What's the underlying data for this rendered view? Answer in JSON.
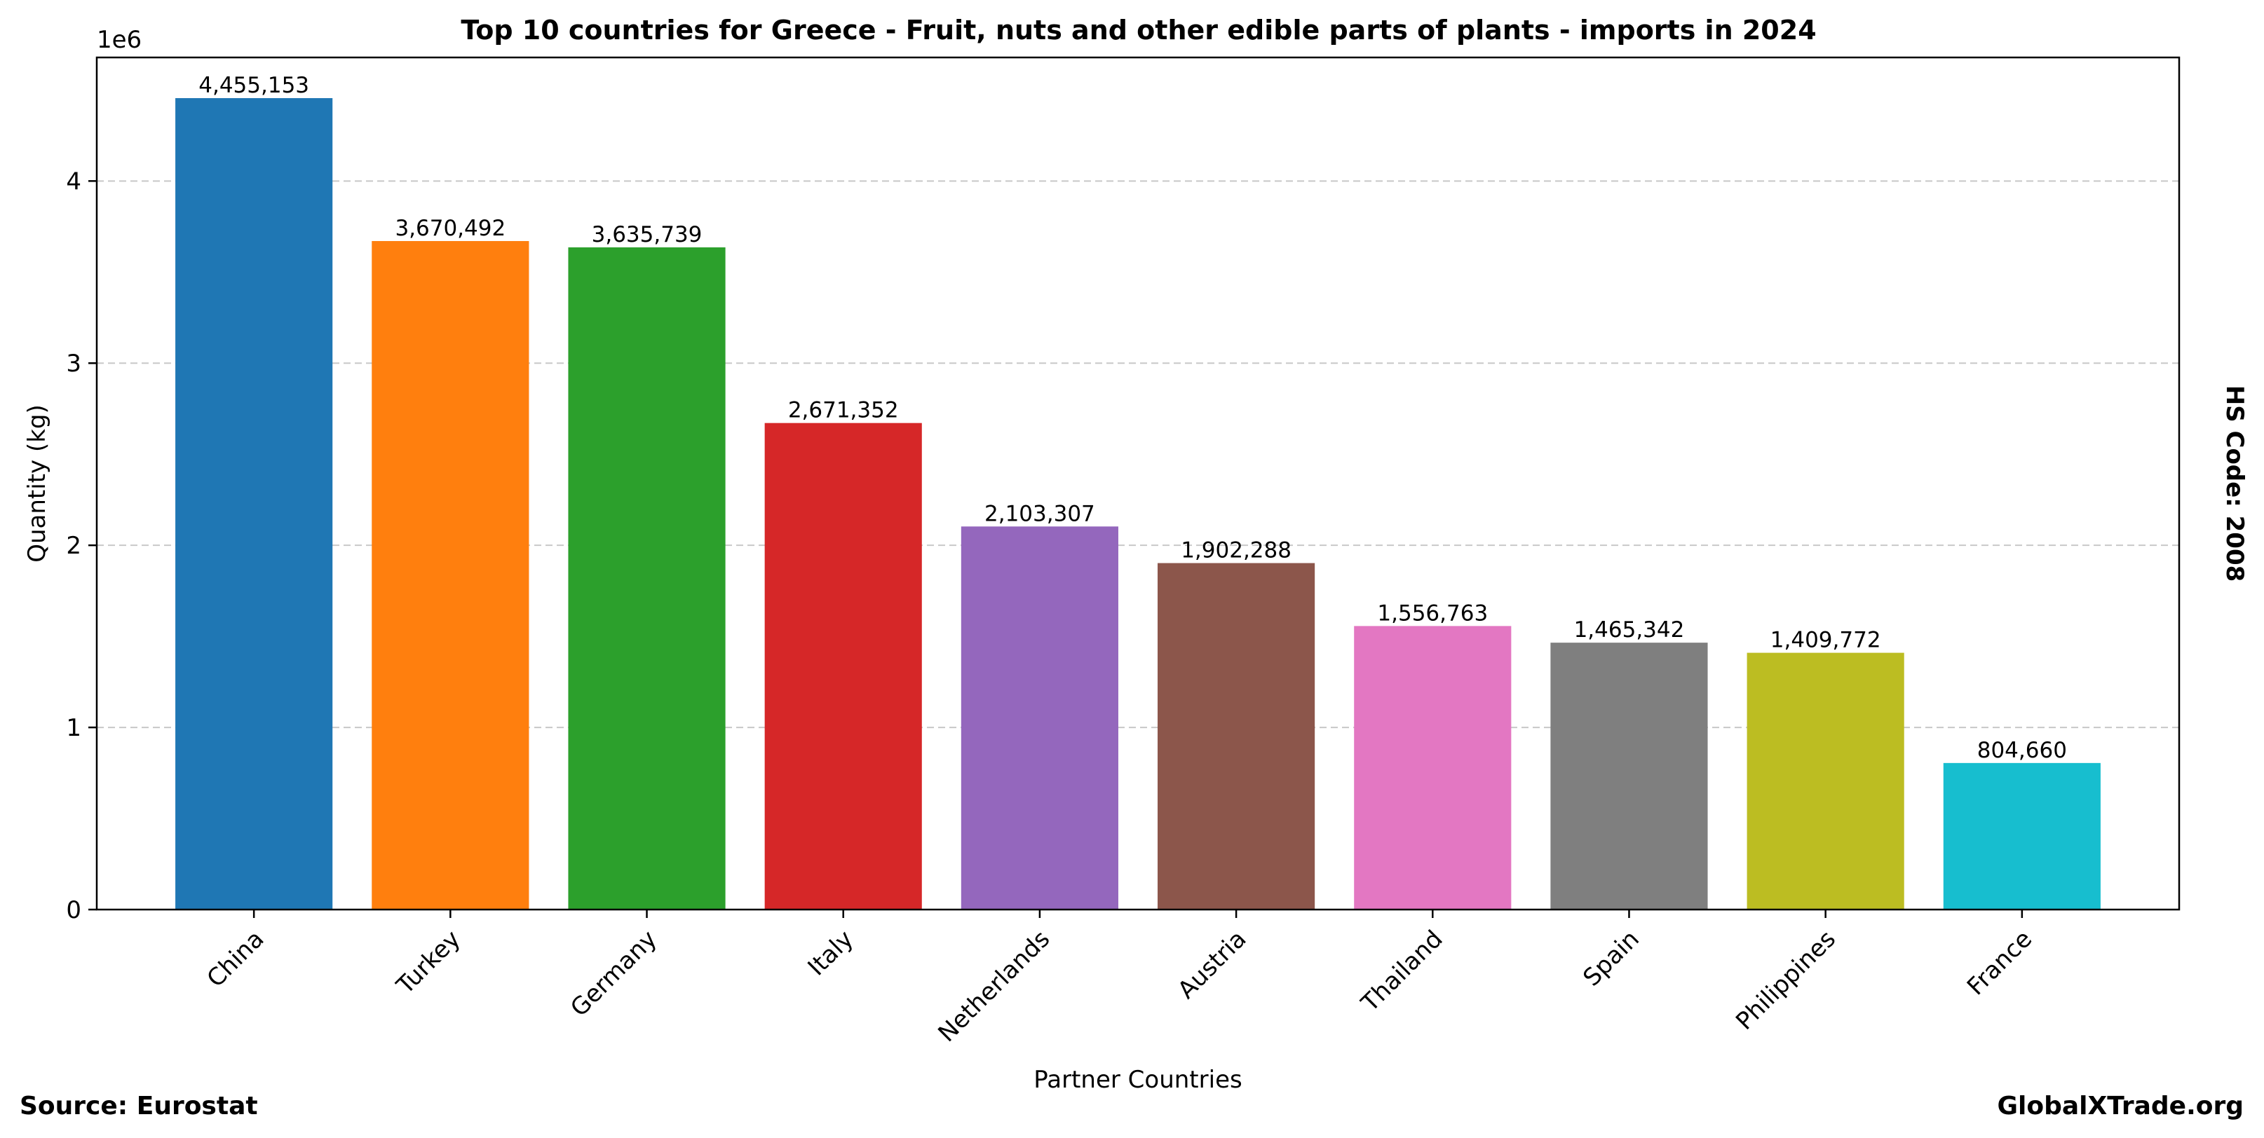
{
  "chart_data": {
    "type": "bar",
    "title": "Top 10 countries for Greece - Fruit, nuts and other edible parts of plants - imports in 2024",
    "xlabel": "Partner Countries",
    "ylabel": "Quantity (kg)",
    "y_offset_label": "1e6",
    "y_scale": 1000000,
    "ylim": [
      0,
      4678411
    ],
    "yticks": [
      0,
      1000000,
      2000000,
      3000000,
      4000000
    ],
    "ytick_labels": [
      "0",
      "1",
      "2",
      "3",
      "4"
    ],
    "grid": "y dashed",
    "categories": [
      "China",
      "Turkey",
      "Germany",
      "Italy",
      "Netherlands",
      "Austria",
      "Thailand",
      "Spain",
      "Philippines",
      "France"
    ],
    "values": [
      4455153,
      3670492,
      3635739,
      2671352,
      2103307,
      1902288,
      1556763,
      1465342,
      1409772,
      804660
    ],
    "value_labels": [
      "4,455,153",
      "3,670,492",
      "3,635,739",
      "2,671,352",
      "2,103,307",
      "1,902,288",
      "1,556,763",
      "1,465,342",
      "1,409,772",
      "804,660"
    ],
    "colors": [
      "#1f77b4",
      "#ff7f0e",
      "#2ca02c",
      "#d62728",
      "#9467bd",
      "#8c564b",
      "#e377c2",
      "#7f7f7f",
      "#bcbd22",
      "#17becf"
    ]
  },
  "side_note": "HS Code: 2008",
  "footer": {
    "source": "Source: Eurostat",
    "brand": "GlobalXTrade.org"
  }
}
